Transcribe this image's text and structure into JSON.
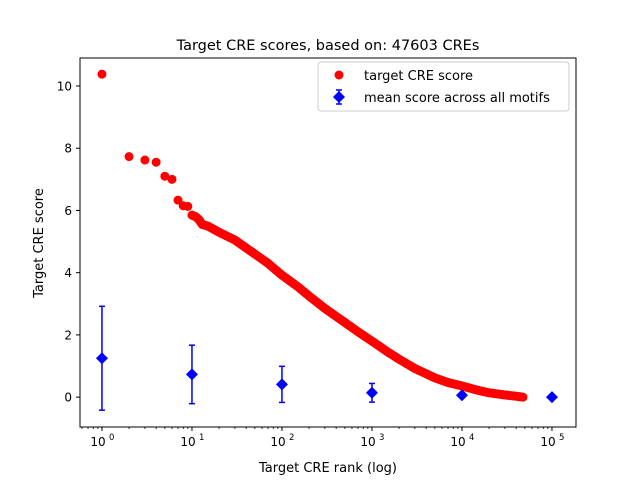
{
  "chart_data": {
    "type": "scatter",
    "title": "Target CRE scores, based on: 47603 CREs",
    "xlabel": "Target CRE rank (log)",
    "ylabel": "Target CRE score",
    "xscale": "log",
    "xlim": [
      0.57,
      185000
    ],
    "ylim": [
      -0.96,
      10.9
    ],
    "xticks": [
      1,
      10,
      100,
      1000,
      10000,
      100000
    ],
    "xtick_labels": [
      [
        "10",
        "0"
      ],
      [
        "10",
        "1"
      ],
      [
        "10",
        "2"
      ],
      [
        "10",
        "3"
      ],
      [
        "10",
        "4"
      ],
      [
        "10",
        "5"
      ]
    ],
    "yticks": [
      0,
      2,
      4,
      6,
      8,
      10
    ],
    "ytick_labels": [
      "0",
      "2",
      "4",
      "6",
      "8",
      "10"
    ],
    "grid": false,
    "legend_position": "top-right",
    "series": [
      {
        "name": "target CRE score",
        "color": "#ff0000",
        "marker": "circle",
        "points": [
          [
            1,
            10.38
          ],
          [
            2,
            7.73
          ],
          [
            3,
            7.62
          ],
          [
            4,
            7.55
          ],
          [
            5,
            7.1
          ],
          [
            6,
            7.0
          ],
          [
            7,
            6.33
          ],
          [
            8,
            6.15
          ],
          [
            9,
            6.13
          ],
          [
            10,
            5.85
          ],
          [
            11,
            5.8
          ],
          [
            12,
            5.7
          ],
          [
            13,
            5.55
          ],
          [
            15,
            5.5
          ],
          [
            20,
            5.3
          ],
          [
            30,
            5.05
          ],
          [
            50,
            4.6
          ],
          [
            70,
            4.3
          ],
          [
            100,
            3.92
          ],
          [
            150,
            3.55
          ],
          [
            200,
            3.25
          ],
          [
            300,
            2.85
          ],
          [
            500,
            2.4
          ],
          [
            700,
            2.1
          ],
          [
            1000,
            1.8
          ],
          [
            1500,
            1.45
          ],
          [
            2000,
            1.22
          ],
          [
            3000,
            0.92
          ],
          [
            5000,
            0.62
          ],
          [
            7000,
            0.47
          ],
          [
            10000,
            0.36
          ],
          [
            15000,
            0.22
          ],
          [
            20000,
            0.14
          ],
          [
            30000,
            0.07
          ],
          [
            40000,
            0.03
          ],
          [
            47603,
            0.0
          ]
        ]
      },
      {
        "name": "mean score across all motifs",
        "color": "#0000ff",
        "marker": "diamond",
        "points": [
          [
            1,
            1.25,
            1.67
          ],
          [
            10,
            0.73,
            0.94
          ],
          [
            100,
            0.41,
            0.58
          ],
          [
            1000,
            0.14,
            0.3
          ],
          [
            10000,
            0.06,
            0.05
          ],
          [
            100000,
            0.0,
            0.0
          ]
        ]
      }
    ]
  }
}
